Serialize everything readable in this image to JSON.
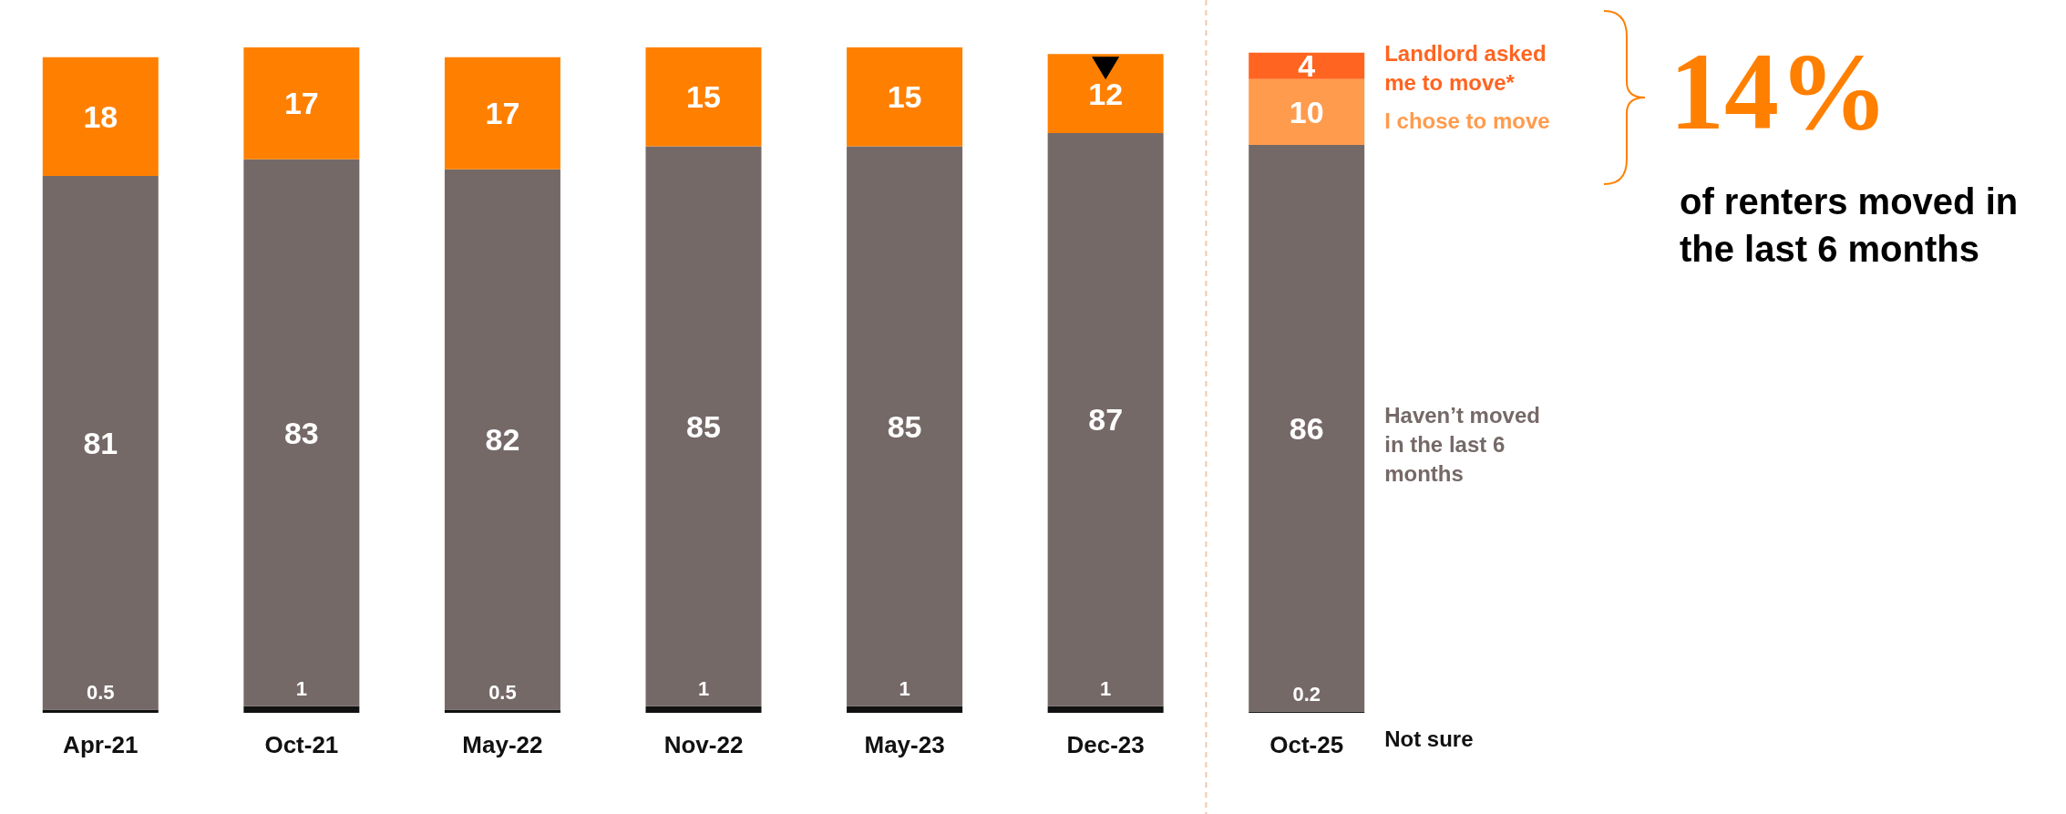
{
  "chart_data": {
    "type": "bar",
    "stacked": true,
    "data_labels": true,
    "categories": [
      "Apr-21",
      "Oct-21",
      "May-22",
      "Nov-22",
      "May-23",
      "Dec-23",
      "Oct-25"
    ],
    "series": [
      {
        "name": "Not sure",
        "color": "#111111",
        "values": [
          0.5,
          1,
          0.5,
          1,
          1,
          1,
          0.2
        ]
      },
      {
        "name": "Haven’t moved in the last 6 months",
        "color": "#756968",
        "values": [
          81,
          83,
          82,
          85,
          85,
          87,
          86
        ]
      },
      {
        "color": "#ff8000",
        "values": [
          18,
          17,
          17,
          15,
          15,
          12,
          null
        ]
      },
      {
        "name": "I chose to move",
        "color": "#ff9b4d",
        "values": [
          null,
          null,
          null,
          null,
          null,
          null,
          10
        ]
      },
      {
        "name": "Landlord asked me to move*",
        "color": "#ff6420",
        "values": [
          null,
          null,
          null,
          null,
          null,
          null,
          4
        ]
      }
    ],
    "annotations": [
      "14%",
      "of renters moved in the last 6 months"
    ]
  }
}
